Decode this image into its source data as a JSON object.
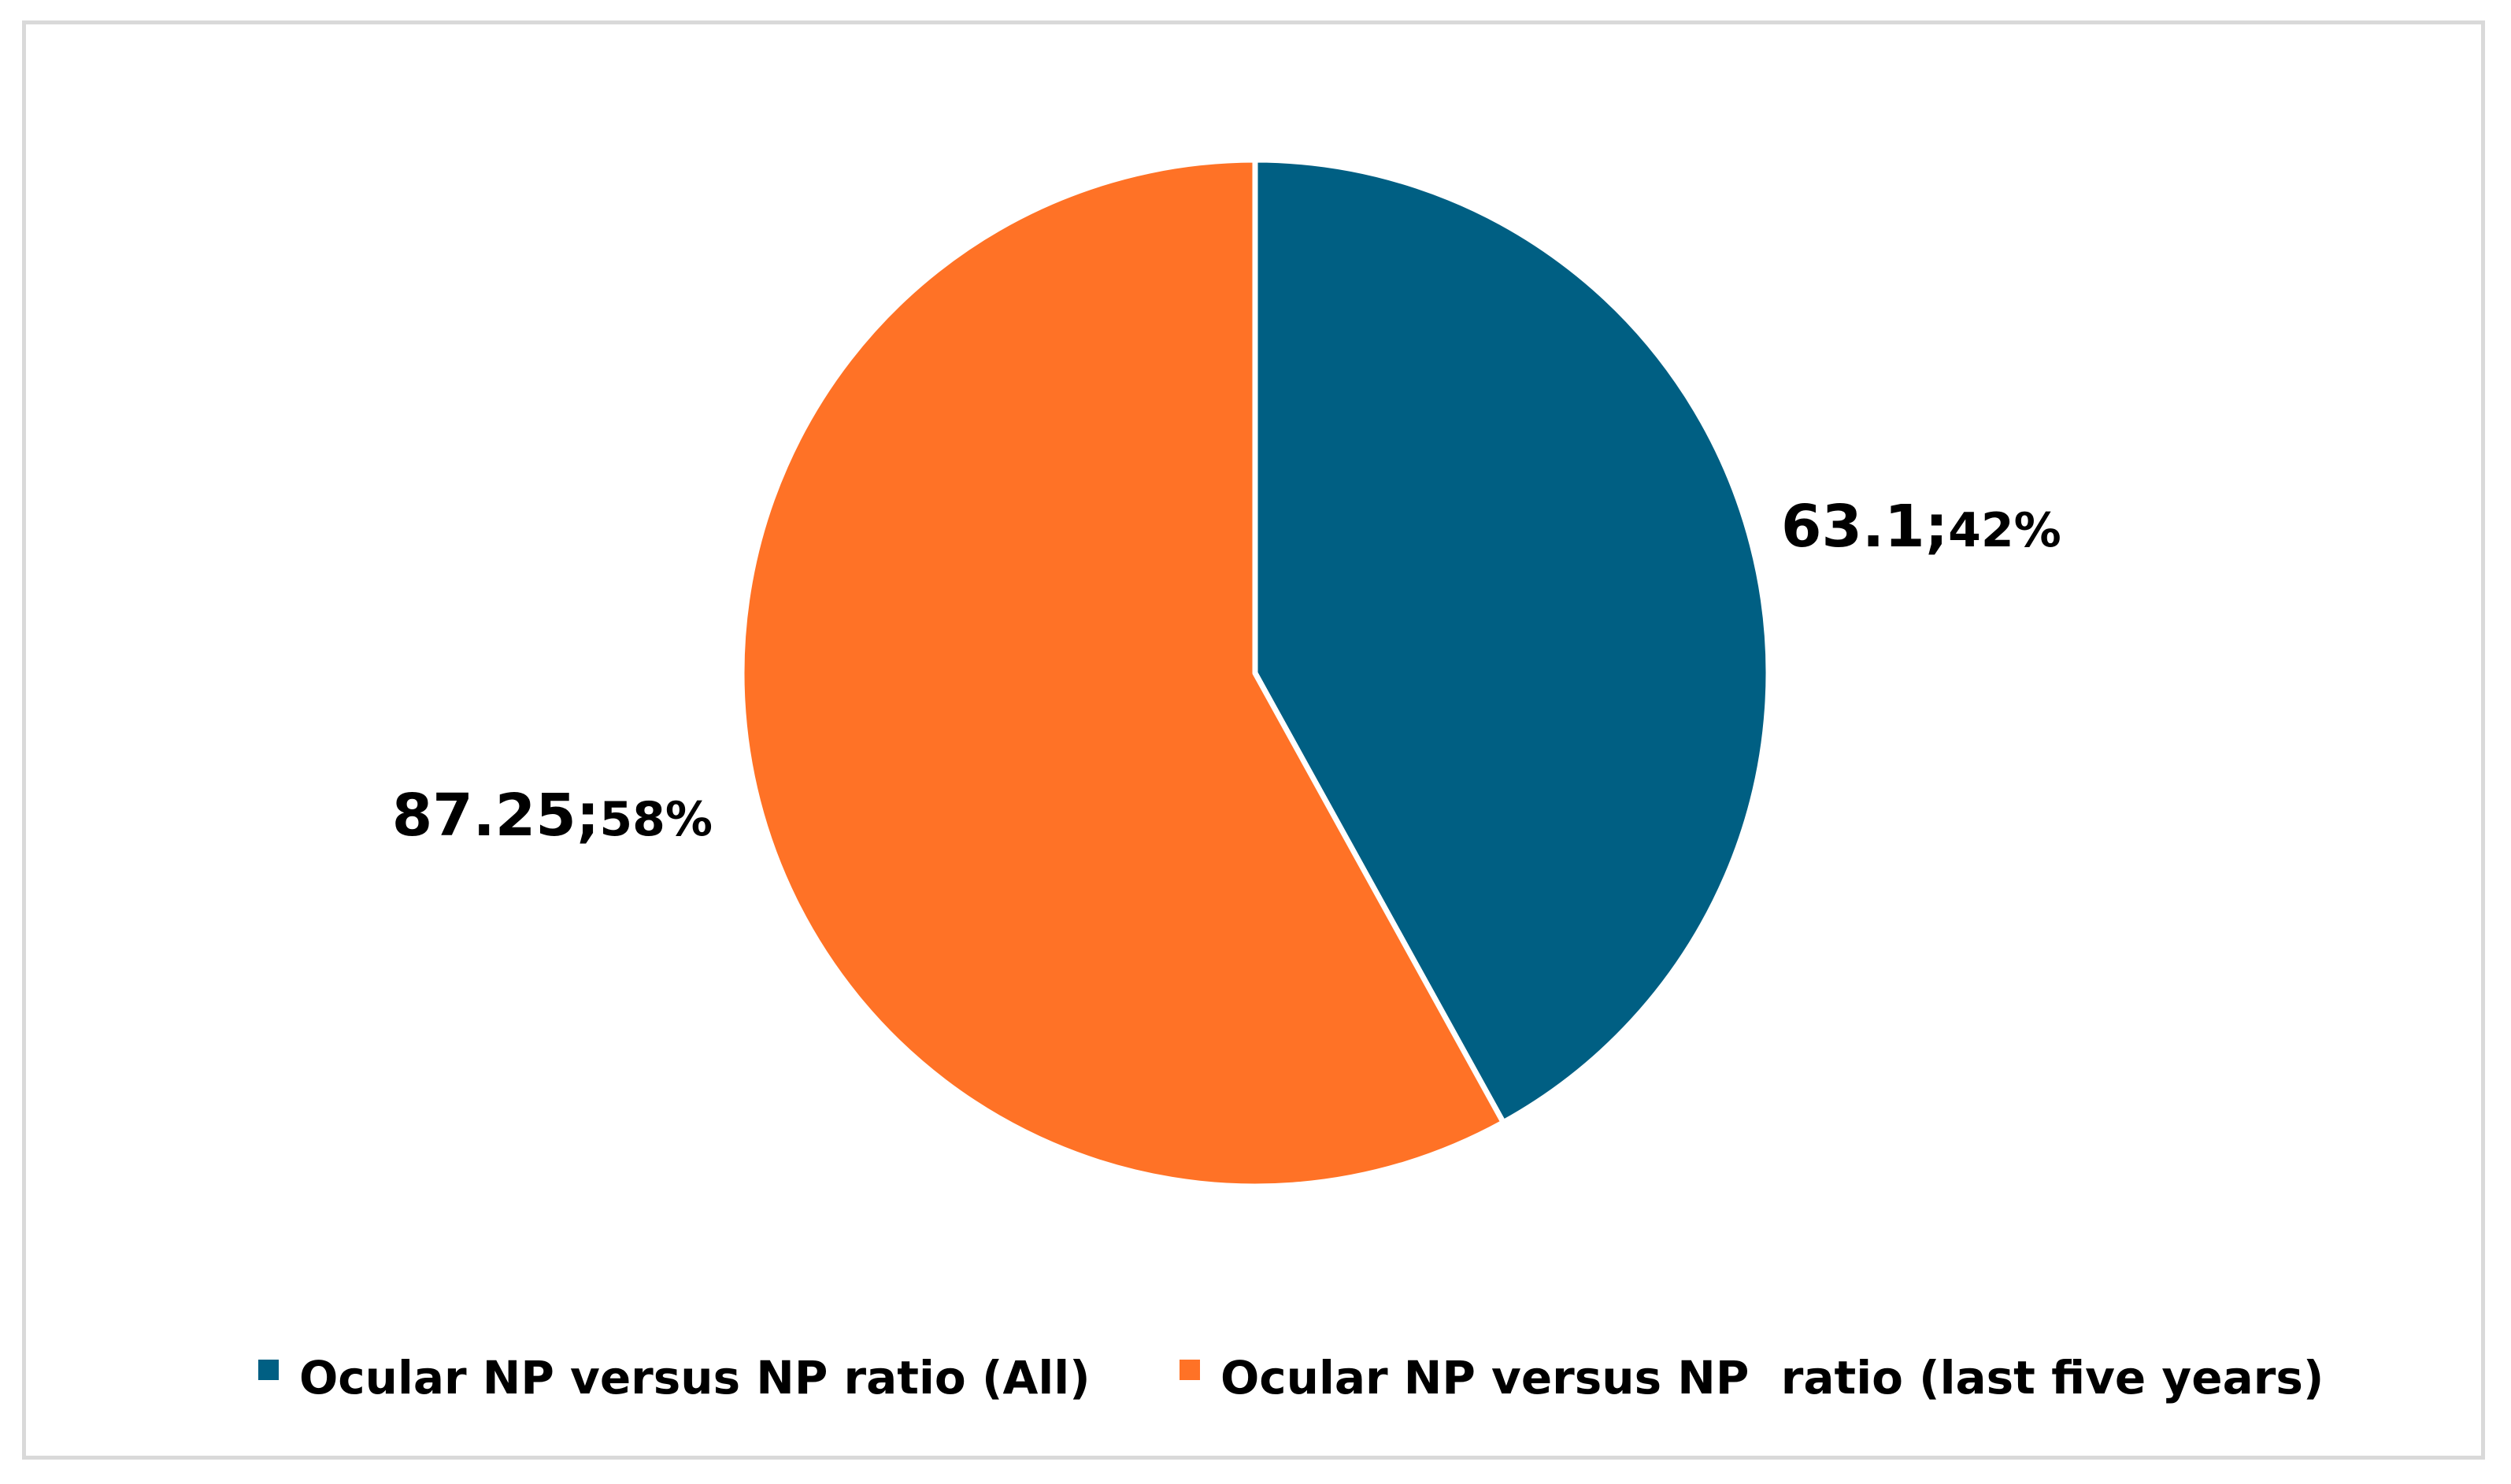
{
  "chart_data": {
    "type": "pie",
    "slices": [
      {
        "name": "Ocular NP versus NP ratio (All)",
        "value": 63.1,
        "percent_label": "42%",
        "value_label": "63.1;",
        "color": "#005f83"
      },
      {
        "name": "Ocular NP versus NP  ratio (last five years)",
        "value": 87.25,
        "percent_label": "58%",
        "value_label": "87.25;",
        "color": "#ff7226"
      }
    ],
    "start_angle_deg": 0,
    "direction": "clockwise",
    "legend_position": "bottom",
    "slice_border_color": "#ffffff",
    "title": ""
  }
}
